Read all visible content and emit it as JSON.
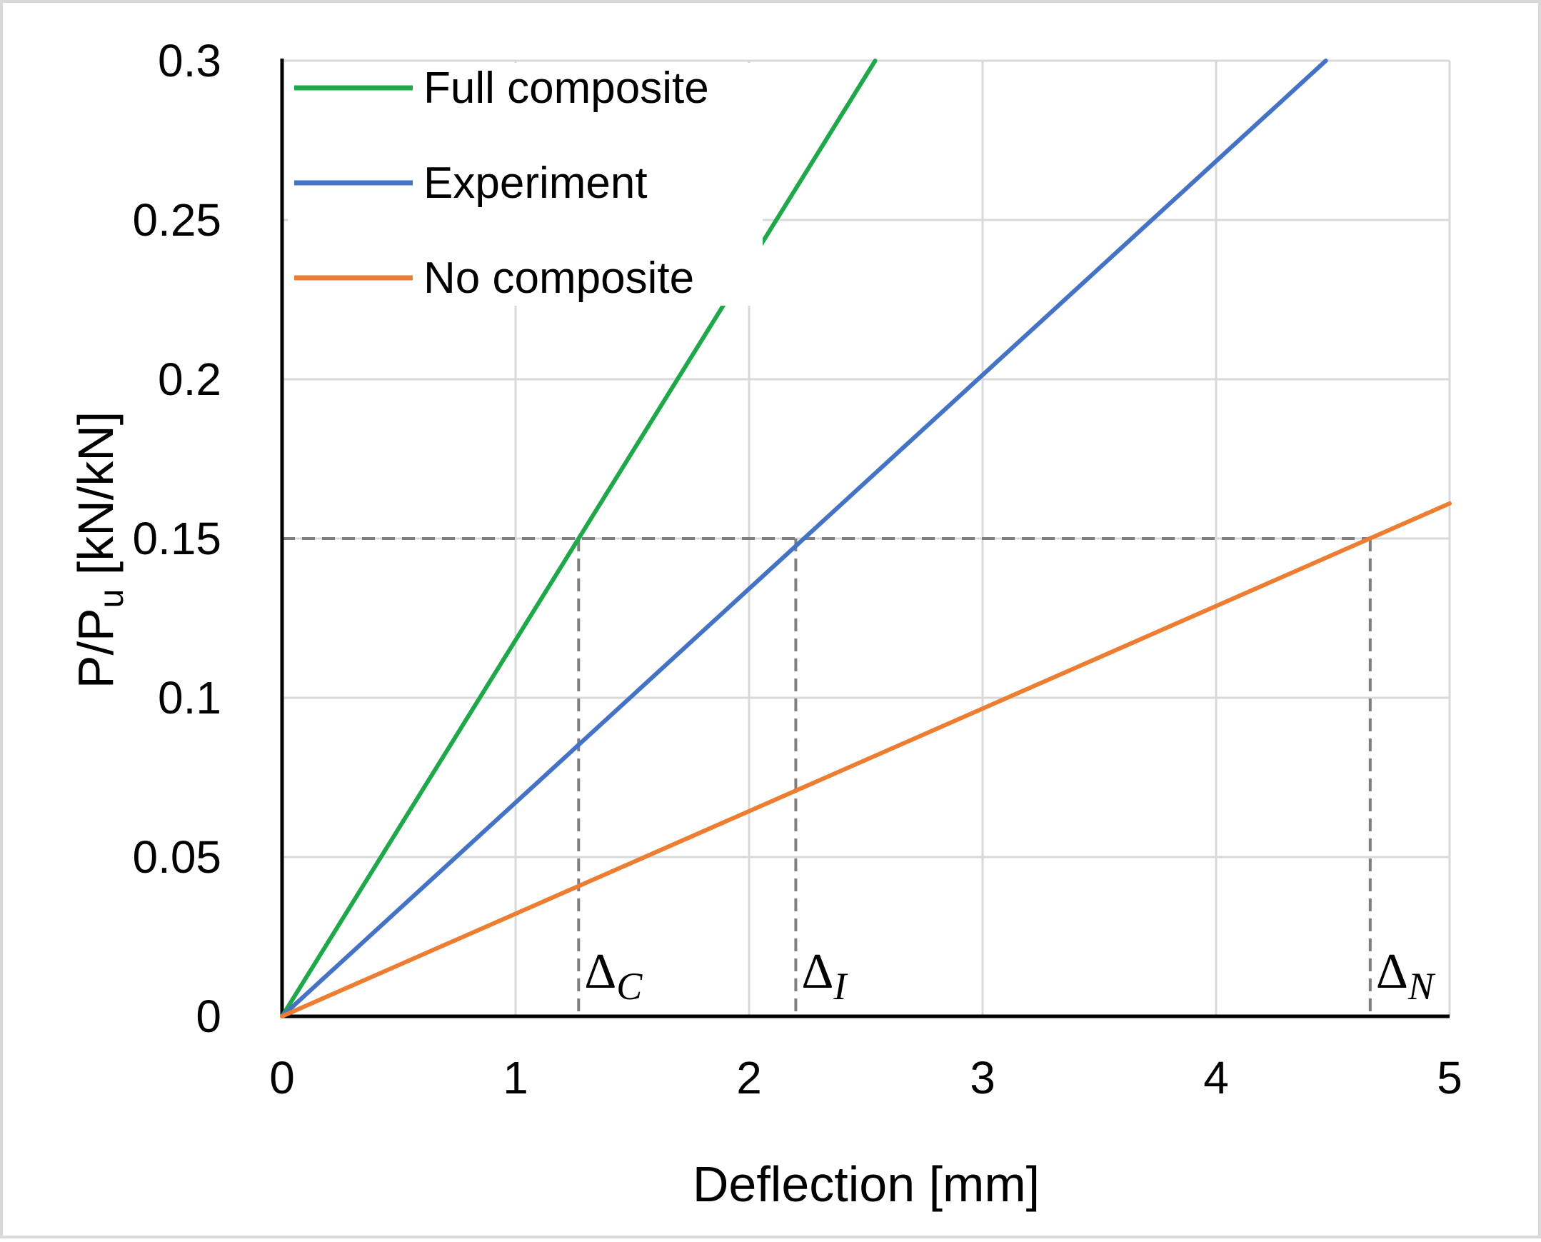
{
  "chart_data": {
    "type": "line",
    "title": "",
    "xlabel": "Deflection [mm]",
    "ylabel": "P/P",
    "ylabel_sub": "u",
    "ylabel_unit": " [kN/kN]",
    "xlim": [
      0,
      5
    ],
    "ylim": [
      0,
      0.3
    ],
    "x_ticks": [
      0,
      1,
      2,
      3,
      4,
      5
    ],
    "x_tick_labels": [
      "0",
      "1",
      "2",
      "3",
      "4",
      "5"
    ],
    "y_ticks": [
      0,
      0.05,
      0.1,
      0.15,
      0.2,
      0.25,
      0.3
    ],
    "y_tick_labels": [
      "0",
      "0.05",
      "0.1",
      "0.15",
      "0.2",
      "0.25",
      "0.3"
    ],
    "grid": true,
    "legend_position": "top-left",
    "series": [
      {
        "name": "Full composite",
        "color": "#1fa84a",
        "x": [
          0,
          2.54
        ],
        "y": [
          0,
          0.3
        ]
      },
      {
        "name": "Experiment",
        "color": "#4472c4",
        "x": [
          0,
          4.47
        ],
        "y": [
          0,
          0.3
        ]
      },
      {
        "name": "No composite",
        "color": "#ed7d31",
        "x": [
          0,
          5.0
        ],
        "y": [
          0,
          0.161
        ]
      }
    ],
    "reference_line": {
      "y": 0.15,
      "style": "dashed",
      "color": "#7f7f7f"
    },
    "markers": [
      {
        "base": "Δ",
        "sub": "C",
        "x": 1.27
      },
      {
        "base": "Δ",
        "sub": "I",
        "x": 2.2
      },
      {
        "base": "Δ",
        "sub": "N",
        "x": 4.66
      }
    ]
  }
}
